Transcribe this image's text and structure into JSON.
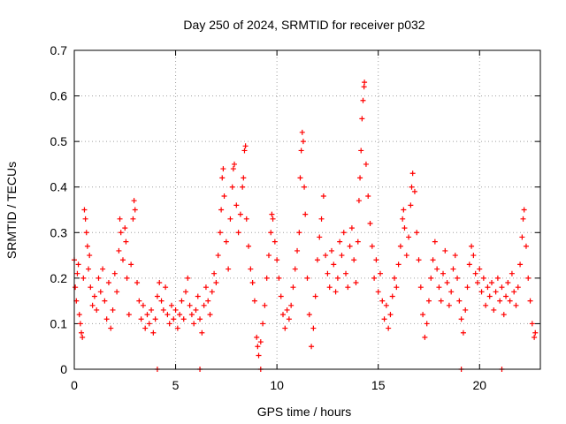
{
  "chart_data": {
    "type": "scatter",
    "title": "Day 250 of 2024, SRMTID for receiver p032",
    "xlabel": "GPS time / hours",
    "ylabel": "SRMTID / TECUs",
    "xlim": [
      0,
      23
    ],
    "ylim": [
      0,
      0.7
    ],
    "x_ticks": [
      0,
      5,
      10,
      15,
      20
    ],
    "y_ticks": [
      0,
      0.1,
      0.2,
      0.3,
      0.4,
      0.5,
      0.6,
      0.7
    ],
    "x_tick_labels": [
      "0",
      "5",
      "10",
      "15",
      "20"
    ],
    "y_tick_labels": [
      "0",
      "0.1",
      "0.2",
      "0.3",
      "0.4",
      "0.5",
      "0.6",
      "0.7"
    ],
    "grid": true,
    "marker": "+",
    "marker_color": "#ff0000",
    "series": [
      {
        "name": "SRMTID",
        "points": [
          [
            0.0,
            0.24
          ],
          [
            0.05,
            0.18
          ],
          [
            0.1,
            0.15
          ],
          [
            0.15,
            0.21
          ],
          [
            0.2,
            0.23
          ],
          [
            0.25,
            0.12
          ],
          [
            0.3,
            0.1
          ],
          [
            0.35,
            0.08
          ],
          [
            0.4,
            0.07
          ],
          [
            0.45,
            0.2
          ],
          [
            0.5,
            0.35
          ],
          [
            0.55,
            0.33
          ],
          [
            0.6,
            0.3
          ],
          [
            0.65,
            0.27
          ],
          [
            0.7,
            0.22
          ],
          [
            0.75,
            0.25
          ],
          [
            0.8,
            0.18
          ],
          [
            0.9,
            0.14
          ],
          [
            1.0,
            0.16
          ],
          [
            1.1,
            0.13
          ],
          [
            1.2,
            0.2
          ],
          [
            1.3,
            0.17
          ],
          [
            1.4,
            0.22
          ],
          [
            1.5,
            0.15
          ],
          [
            1.6,
            0.11
          ],
          [
            1.7,
            0.19
          ],
          [
            1.8,
            0.09
          ],
          [
            1.9,
            0.13
          ],
          [
            2.0,
            0.21
          ],
          [
            2.1,
            0.17
          ],
          [
            2.2,
            0.26
          ],
          [
            2.25,
            0.33
          ],
          [
            2.3,
            0.3
          ],
          [
            2.4,
            0.24
          ],
          [
            2.5,
            0.31
          ],
          [
            2.55,
            0.28
          ],
          [
            2.6,
            0.2
          ],
          [
            2.7,
            0.12
          ],
          [
            2.8,
            0.23
          ],
          [
            2.9,
            0.33
          ],
          [
            2.95,
            0.37
          ],
          [
            3.0,
            0.35
          ],
          [
            3.1,
            0.19
          ],
          [
            3.2,
            0.15
          ],
          [
            3.3,
            0.11
          ],
          [
            3.4,
            0.14
          ],
          [
            3.5,
            0.09
          ],
          [
            3.6,
            0.12
          ],
          [
            3.7,
            0.1
          ],
          [
            3.8,
            0.13
          ],
          [
            3.9,
            0.08
          ],
          [
            4.0,
            0.11
          ],
          [
            4.1,
            0.16
          ],
          [
            4.2,
            0.19
          ],
          [
            4.3,
            0.15
          ],
          [
            4.4,
            0.13
          ],
          [
            4.5,
            0.18
          ],
          [
            4.6,
            0.12
          ],
          [
            4.7,
            0.1
          ],
          [
            4.8,
            0.14
          ],
          [
            4.9,
            0.11
          ],
          [
            5.0,
            0.13
          ],
          [
            5.1,
            0.09
          ],
          [
            5.2,
            0.12
          ],
          [
            5.3,
            0.15
          ],
          [
            5.4,
            0.11
          ],
          [
            5.5,
            0.17
          ],
          [
            5.6,
            0.2
          ],
          [
            5.7,
            0.14
          ],
          [
            5.8,
            0.12
          ],
          [
            5.9,
            0.1
          ],
          [
            6.0,
            0.13
          ],
          [
            6.1,
            0.16
          ],
          [
            6.2,
            0.11
          ],
          [
            6.3,
            0.08
          ],
          [
            6.4,
            0.14
          ],
          [
            6.5,
            0.18
          ],
          [
            6.6,
            0.15
          ],
          [
            6.7,
            0.12
          ],
          [
            6.8,
            0.17
          ],
          [
            6.9,
            0.21
          ],
          [
            7.0,
            0.19
          ],
          [
            7.1,
            0.25
          ],
          [
            7.2,
            0.3
          ],
          [
            7.25,
            0.35
          ],
          [
            7.3,
            0.42
          ],
          [
            7.35,
            0.44
          ],
          [
            7.4,
            0.38
          ],
          [
            7.5,
            0.28
          ],
          [
            7.6,
            0.22
          ],
          [
            7.7,
            0.33
          ],
          [
            7.8,
            0.4
          ],
          [
            7.85,
            0.44
          ],
          [
            7.9,
            0.45
          ],
          [
            8.0,
            0.36
          ],
          [
            8.1,
            0.3
          ],
          [
            8.2,
            0.34
          ],
          [
            8.3,
            0.4
          ],
          [
            8.35,
            0.42
          ],
          [
            8.4,
            0.48
          ],
          [
            8.45,
            0.49
          ],
          [
            8.5,
            0.33
          ],
          [
            8.6,
            0.27
          ],
          [
            8.7,
            0.22
          ],
          [
            8.8,
            0.19
          ],
          [
            8.9,
            0.15
          ],
          [
            9.0,
            0.07
          ],
          [
            9.05,
            0.05
          ],
          [
            9.1,
            0.03
          ],
          [
            9.2,
            0.06
          ],
          [
            9.3,
            0.1
          ],
          [
            9.4,
            0.14
          ],
          [
            9.5,
            0.2
          ],
          [
            9.6,
            0.25
          ],
          [
            9.7,
            0.3
          ],
          [
            9.75,
            0.34
          ],
          [
            9.8,
            0.33
          ],
          [
            9.9,
            0.28
          ],
          [
            10.0,
            0.24
          ],
          [
            10.1,
            0.2
          ],
          [
            10.2,
            0.16
          ],
          [
            10.3,
            0.12
          ],
          [
            10.4,
            0.09
          ],
          [
            10.5,
            0.13
          ],
          [
            10.6,
            0.11
          ],
          [
            10.7,
            0.14
          ],
          [
            10.8,
            0.18
          ],
          [
            10.9,
            0.22
          ],
          [
            11.0,
            0.26
          ],
          [
            11.1,
            0.3
          ],
          [
            11.15,
            0.42
          ],
          [
            11.2,
            0.48
          ],
          [
            11.25,
            0.52
          ],
          [
            11.3,
            0.5
          ],
          [
            11.35,
            0.4
          ],
          [
            11.4,
            0.34
          ],
          [
            11.5,
            0.2
          ],
          [
            11.6,
            0.12
          ],
          [
            11.7,
            0.05
          ],
          [
            11.8,
            0.09
          ],
          [
            11.9,
            0.16
          ],
          [
            12.0,
            0.24
          ],
          [
            12.1,
            0.29
          ],
          [
            12.2,
            0.33
          ],
          [
            12.3,
            0.38
          ],
          [
            12.4,
            0.25
          ],
          [
            12.5,
            0.21
          ],
          [
            12.6,
            0.18
          ],
          [
            12.7,
            0.26
          ],
          [
            12.8,
            0.23
          ],
          [
            12.9,
            0.17
          ],
          [
            13.0,
            0.2
          ],
          [
            13.1,
            0.28
          ],
          [
            13.2,
            0.25
          ],
          [
            13.3,
            0.3
          ],
          [
            13.4,
            0.21
          ],
          [
            13.5,
            0.18
          ],
          [
            13.6,
            0.27
          ],
          [
            13.7,
            0.31
          ],
          [
            13.8,
            0.24
          ],
          [
            13.9,
            0.19
          ],
          [
            14.0,
            0.28
          ],
          [
            14.05,
            0.37
          ],
          [
            14.1,
            0.42
          ],
          [
            14.15,
            0.48
          ],
          [
            14.2,
            0.55
          ],
          [
            14.25,
            0.59
          ],
          [
            14.3,
            0.62
          ],
          [
            14.32,
            0.63
          ],
          [
            14.4,
            0.45
          ],
          [
            14.5,
            0.38
          ],
          [
            14.6,
            0.32
          ],
          [
            14.7,
            0.27
          ],
          [
            14.8,
            0.2
          ],
          [
            14.9,
            0.24
          ],
          [
            15.0,
            0.17
          ],
          [
            15.1,
            0.21
          ],
          [
            15.2,
            0.15
          ],
          [
            15.3,
            0.11
          ],
          [
            15.4,
            0.14
          ],
          [
            15.5,
            0.09
          ],
          [
            15.6,
            0.12
          ],
          [
            15.7,
            0.16
          ],
          [
            15.8,
            0.2
          ],
          [
            15.9,
            0.18
          ],
          [
            16.0,
            0.23
          ],
          [
            16.1,
            0.27
          ],
          [
            16.2,
            0.33
          ],
          [
            16.25,
            0.35
          ],
          [
            16.3,
            0.31
          ],
          [
            16.4,
            0.25
          ],
          [
            16.5,
            0.29
          ],
          [
            16.6,
            0.36
          ],
          [
            16.65,
            0.4
          ],
          [
            16.7,
            0.43
          ],
          [
            16.8,
            0.39
          ],
          [
            16.9,
            0.3
          ],
          [
            17.0,
            0.24
          ],
          [
            17.1,
            0.18
          ],
          [
            17.2,
            0.12
          ],
          [
            17.3,
            0.07
          ],
          [
            17.4,
            0.1
          ],
          [
            17.5,
            0.15
          ],
          [
            17.6,
            0.2
          ],
          [
            17.7,
            0.24
          ],
          [
            17.8,
            0.28
          ],
          [
            17.9,
            0.22
          ],
          [
            18.0,
            0.18
          ],
          [
            18.1,
            0.15
          ],
          [
            18.2,
            0.21
          ],
          [
            18.3,
            0.26
          ],
          [
            18.4,
            0.19
          ],
          [
            18.5,
            0.14
          ],
          [
            18.6,
            0.17
          ],
          [
            18.7,
            0.22
          ],
          [
            18.8,
            0.25
          ],
          [
            18.9,
            0.2
          ],
          [
            19.0,
            0.15
          ],
          [
            19.1,
            0.11
          ],
          [
            19.2,
            0.08
          ],
          [
            19.3,
            0.13
          ],
          [
            19.4,
            0.18
          ],
          [
            19.5,
            0.23
          ],
          [
            19.6,
            0.27
          ],
          [
            19.7,
            0.25
          ],
          [
            19.8,
            0.21
          ],
          [
            19.9,
            0.19
          ],
          [
            20.0,
            0.22
          ],
          [
            20.1,
            0.17
          ],
          [
            20.2,
            0.2
          ],
          [
            20.3,
            0.14
          ],
          [
            20.4,
            0.18
          ],
          [
            20.5,
            0.16
          ],
          [
            20.6,
            0.19
          ],
          [
            20.7,
            0.13
          ],
          [
            20.8,
            0.17
          ],
          [
            20.9,
            0.2
          ],
          [
            21.0,
            0.15
          ],
          [
            21.1,
            0.18
          ],
          [
            21.2,
            0.12
          ],
          [
            21.3,
            0.16
          ],
          [
            21.4,
            0.19
          ],
          [
            21.5,
            0.15
          ],
          [
            21.6,
            0.21
          ],
          [
            21.7,
            0.17
          ],
          [
            21.8,
            0.14
          ],
          [
            21.9,
            0.18
          ],
          [
            22.0,
            0.23
          ],
          [
            22.1,
            0.29
          ],
          [
            22.15,
            0.33
          ],
          [
            22.2,
            0.35
          ],
          [
            22.3,
            0.27
          ],
          [
            22.4,
            0.2
          ],
          [
            22.5,
            0.15
          ],
          [
            22.6,
            0.1
          ],
          [
            22.7,
            0.07
          ],
          [
            22.75,
            0.08
          ],
          [
            4.1,
            0.0
          ],
          [
            6.2,
            0.0
          ],
          [
            9.2,
            0.0
          ],
          [
            19.1,
            0.0
          ],
          [
            21.1,
            0.0
          ]
        ]
      }
    ]
  }
}
